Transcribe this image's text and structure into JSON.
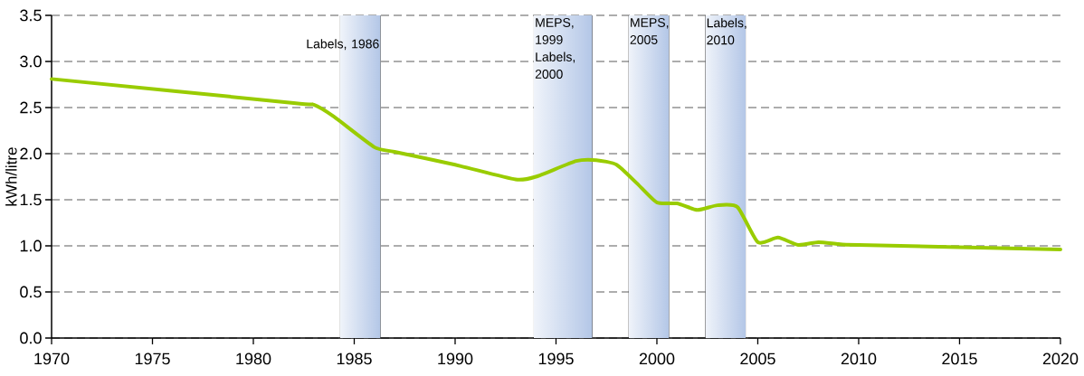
{
  "chart_data": {
    "type": "line",
    "ylabel": "kWh/litre",
    "x": [
      1970,
      1982,
      1983,
      1984,
      1986,
      1987,
      1990,
      1993,
      1994,
      1996,
      1997,
      1998,
      1999,
      2000,
      2001,
      2002,
      2003,
      2004,
      2005,
      2006,
      2007,
      2008,
      2009,
      2010,
      2020
    ],
    "series": [
      {
        "color": "#99cc00",
        "values": [
          2.81,
          2.55,
          2.53,
          2.4,
          2.07,
          2.02,
          1.88,
          1.72,
          1.75,
          1.92,
          1.93,
          1.88,
          1.68,
          1.47,
          1.46,
          1.39,
          1.44,
          1.42,
          1.04,
          1.09,
          1.01,
          1.04,
          1.02,
          1.01,
          0.96
        ]
      }
    ],
    "xlim": [
      1970,
      2020
    ],
    "ylim": [
      0,
      3.5
    ],
    "xticks": [
      1970,
      1975,
      1980,
      1985,
      1990,
      1995,
      2000,
      2005,
      2010,
      2015,
      2020
    ],
    "yticks": [
      {
        "value": 0,
        "label": "0.0"
      },
      {
        "value": 0.5,
        "label": "0.5"
      },
      {
        "value": 1,
        "label": "1.0"
      },
      {
        "value": 1.5,
        "label": "1.5"
      },
      {
        "value": 2,
        "label": "2.0"
      },
      {
        "value": 2.5,
        "label": "2.5"
      },
      {
        "value": 3,
        "label": "3.0"
      },
      {
        "value": 3.5,
        "label": "3.5"
      }
    ],
    "grid": "y",
    "bands": [
      {
        "axis": "x",
        "from": 1984.3,
        "to": 1986.3,
        "label": "Labels, 1986",
        "color": "#b4c7e7"
      },
      {
        "axis": "x",
        "from": 1993.9,
        "to": 1996.8,
        "label": "MEPS, 1999 Labels, 2000",
        "color": "#b4c7e7"
      },
      {
        "axis": "x",
        "from": 1998.6,
        "to": 2000.6,
        "label": "MEPS, 2005",
        "color": "#b4c7e7"
      },
      {
        "axis": "x",
        "from": 2002.4,
        "to": 2004.4,
        "label": "Labels, 2010",
        "color": "#b4c7e7"
      }
    ]
  }
}
